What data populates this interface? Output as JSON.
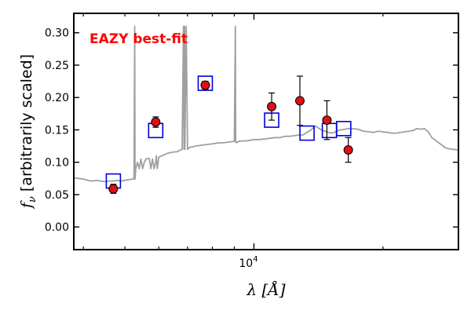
{
  "chart_data": {
    "type": "scatter",
    "title": "",
    "annotation": {
      "text": "EAZY best-fit",
      "color": "#ff0000"
    },
    "xlabel": "λ [Å]",
    "ylabel_italic": "f",
    "ylabel_sub": "ν",
    "ylabel_rest": " [arbitrarily scaled]",
    "xscale": "log",
    "xlim": [
      3800,
      30000
    ],
    "ylim": [
      -0.035,
      0.33
    ],
    "x_major_ticks": [
      10000
    ],
    "x_major_tick_label_base": "10",
    "x_major_tick_label_exp": "4",
    "x_minor_ticks": [
      4000,
      5000,
      6000,
      7000,
      8000,
      9000,
      20000,
      30000
    ],
    "y_ticks": [
      0.0,
      0.05,
      0.1,
      0.15,
      0.2,
      0.25,
      0.3
    ],
    "y_tick_labels": [
      "0.00",
      "0.05",
      "0.10",
      "0.15",
      "0.20",
      "0.25",
      "0.30"
    ],
    "grid": false,
    "colors": {
      "template": "#a0a0a0",
      "model_box": "#0000dd",
      "observed": "#dd1111",
      "errorbar": "#000000"
    },
    "series": [
      {
        "role": "observed",
        "x": [
          4700,
          5900,
          7700,
          11000,
          12800,
          14800,
          16600
        ],
        "y": [
          0.059,
          0.162,
          0.219,
          0.186,
          0.195,
          0.165,
          0.119
        ],
        "yerr": [
          0.007,
          0.008,
          0.006,
          0.021,
          0.038,
          0.03,
          0.019
        ]
      },
      {
        "role": "model",
        "x": [
          4700,
          5900,
          7700,
          11000,
          13300,
          15000,
          16200
        ],
        "y": [
          0.071,
          0.149,
          0.222,
          0.165,
          0.145,
          0.149,
          0.152
        ]
      },
      {
        "role": "template",
        "x": [
          3800,
          3900,
          4000,
          4100,
          4200,
          4300,
          4400,
          4500,
          4600,
          4700,
          4800,
          4900,
          5000,
          5100,
          5200,
          5250,
          5270,
          5280,
          5300,
          5350,
          5400,
          5450,
          5500,
          5550,
          5600,
          5700,
          5750,
          5800,
          5850,
          5900,
          5920,
          5950,
          6000,
          6100,
          6200,
          6300,
          6400,
          6500,
          6600,
          6700,
          6800,
          6850,
          6870,
          6890,
          6900,
          6950,
          7000,
          7050,
          7080,
          7100,
          7300,
          7500,
          7700,
          7900,
          8100,
          8300,
          8500,
          8700,
          8900,
          9000,
          9050,
          9070,
          9100,
          9200,
          9400,
          9600,
          9800,
          10000,
          10300,
          10600,
          10900,
          11200,
          11500,
          11800,
          12100,
          12400,
          12700,
          13000,
          13300,
          13600,
          13900,
          14200,
          14500,
          14800,
          15100,
          15400,
          15700,
          16000,
          16300,
          16600,
          17000,
          17500,
          18000,
          18500,
          19000,
          19500,
          20000,
          20500,
          21000,
          21500,
          22000,
          22500,
          23000,
          23500,
          24000,
          24500,
          25000,
          25500,
          26000,
          27000,
          28000,
          29000,
          30000
        ],
        "y": [
          0.076,
          0.075,
          0.074,
          0.072,
          0.071,
          0.072,
          0.071,
          0.07,
          0.071,
          0.071,
          0.072,
          0.071,
          0.072,
          0.073,
          0.074,
          0.074,
          0.31,
          0.074,
          0.09,
          0.1,
          0.09,
          0.105,
          0.09,
          0.1,
          0.105,
          0.106,
          0.09,
          0.105,
          0.09,
          0.1,
          0.11,
          0.09,
          0.108,
          0.11,
          0.112,
          0.114,
          0.115,
          0.116,
          0.116,
          0.118,
          0.12,
          0.31,
          0.12,
          0.31,
          0.12,
          0.31,
          0.12,
          0.122,
          0.123,
          0.123,
          0.125,
          0.126,
          0.127,
          0.128,
          0.129,
          0.13,
          0.13,
          0.131,
          0.132,
          0.132,
          0.31,
          0.132,
          0.13,
          0.132,
          0.133,
          0.133,
          0.134,
          0.135,
          0.135,
          0.136,
          0.137,
          0.138,
          0.138,
          0.14,
          0.14,
          0.141,
          0.142,
          0.142,
          0.146,
          0.15,
          0.156,
          0.152,
          0.149,
          0.147,
          0.145,
          0.146,
          0.149,
          0.15,
          0.151,
          0.152,
          0.152,
          0.151,
          0.148,
          0.147,
          0.146,
          0.148,
          0.147,
          0.146,
          0.145,
          0.145,
          0.146,
          0.147,
          0.148,
          0.149,
          0.152,
          0.151,
          0.152,
          0.147,
          0.138,
          0.13,
          0.122,
          0.12,
          0.119
        ]
      }
    ]
  }
}
